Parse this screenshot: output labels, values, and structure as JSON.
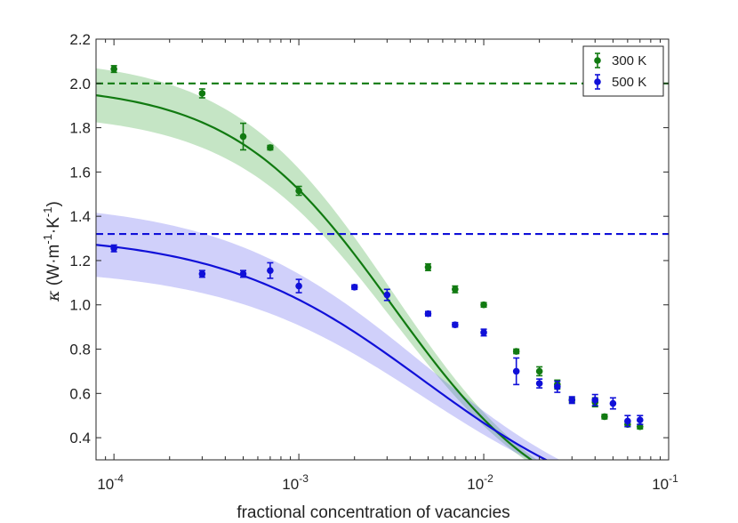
{
  "chart_data": {
    "type": "scatter",
    "xscale": "log",
    "xlim": [
      8e-05,
      0.1
    ],
    "ylim": [
      0.3,
      2.2
    ],
    "xticks": [
      {
        "value": 0.0001,
        "mant": "10",
        "exp": "-4"
      },
      {
        "value": 0.001,
        "mant": "10",
        "exp": "-3"
      },
      {
        "value": 0.01,
        "mant": "10",
        "exp": "-2"
      },
      {
        "value": 0.1,
        "mant": "10",
        "exp": "-1"
      }
    ],
    "yticks": [
      "0.4",
      "0.6",
      "0.8",
      "1.0",
      "1.2",
      "1.4",
      "1.6",
      "1.8",
      "2.0",
      "2.2"
    ],
    "xlabel": "fractional concentration of vacancies",
    "ylabel": {
      "symbol": "κ",
      "pre": "(W·m",
      "e1": "-1",
      "mid": "·K",
      "e2": "-1",
      "post": ")"
    },
    "legend_position": "top-right",
    "series": [
      {
        "name": "300 K",
        "color": "#117a11",
        "band_color": "#4caf4c",
        "reference_line": 2.0,
        "fit": {
          "k0": 1.995,
          "c0": 0.0032,
          "p": 1.0
        },
        "band": {
          "upper_k0": 2.12,
          "lower_k0": 1.87,
          "c0": 0.0032,
          "p": 1.0
        },
        "points": [
          {
            "x": 0.0001,
            "y": 2.065,
            "err": 0.015
          },
          {
            "x": 0.0003,
            "y": 1.955,
            "err": 0.02
          },
          {
            "x": 0.0005,
            "y": 1.76,
            "err": 0.06
          },
          {
            "x": 0.0007,
            "y": 1.71,
            "err": 0.01
          },
          {
            "x": 0.001,
            "y": 1.515,
            "err": 0.02
          },
          {
            "x": 0.005,
            "y": 1.17,
            "err": 0.015
          },
          {
            "x": 0.007,
            "y": 1.07,
            "err": 0.015
          },
          {
            "x": 0.01,
            "y": 1.0,
            "err": 0.01
          },
          {
            "x": 0.015,
            "y": 0.79,
            "err": 0.01
          },
          {
            "x": 0.02,
            "y": 0.7,
            "err": 0.02
          },
          {
            "x": 0.025,
            "y": 0.64,
            "err": 0.02
          },
          {
            "x": 0.03,
            "y": 0.57,
            "err": 0.01
          },
          {
            "x": 0.04,
            "y": 0.56,
            "err": 0.02
          },
          {
            "x": 0.045,
            "y": 0.495,
            "err": 0.01
          },
          {
            "x": 0.06,
            "y": 0.46,
            "err": 0.01
          },
          {
            "x": 0.07,
            "y": 0.45,
            "err": 0.01
          }
        ]
      },
      {
        "name": "500 K",
        "color": "#1010d8",
        "band_color": "#6c6cf0",
        "reference_line": 1.32,
        "fit": {
          "k0": 1.32,
          "c0": 0.0047,
          "p": 0.8
        },
        "band": {
          "upper_k0": 1.47,
          "lower_k0": 1.17,
          "c0": 0.0047,
          "p": 0.8
        },
        "points": [
          {
            "x": 0.0001,
            "y": 1.255,
            "err": 0.015
          },
          {
            "x": 0.0003,
            "y": 1.14,
            "err": 0.015
          },
          {
            "x": 0.0005,
            "y": 1.14,
            "err": 0.015
          },
          {
            "x": 0.0007,
            "y": 1.155,
            "err": 0.035
          },
          {
            "x": 0.001,
            "y": 1.085,
            "err": 0.03
          },
          {
            "x": 0.002,
            "y": 1.08,
            "err": 0.01
          },
          {
            "x": 0.003,
            "y": 1.045,
            "err": 0.025
          },
          {
            "x": 0.005,
            "y": 0.96,
            "err": 0.01
          },
          {
            "x": 0.007,
            "y": 0.91,
            "err": 0.01
          },
          {
            "x": 0.01,
            "y": 0.875,
            "err": 0.015
          },
          {
            "x": 0.015,
            "y": 0.7,
            "err": 0.06
          },
          {
            "x": 0.02,
            "y": 0.645,
            "err": 0.02
          },
          {
            "x": 0.025,
            "y": 0.63,
            "err": 0.025
          },
          {
            "x": 0.03,
            "y": 0.57,
            "err": 0.015
          },
          {
            "x": 0.04,
            "y": 0.57,
            "err": 0.025
          },
          {
            "x": 0.05,
            "y": 0.555,
            "err": 0.025
          },
          {
            "x": 0.06,
            "y": 0.475,
            "err": 0.025
          },
          {
            "x": 0.07,
            "y": 0.48,
            "err": 0.02
          }
        ]
      }
    ]
  }
}
